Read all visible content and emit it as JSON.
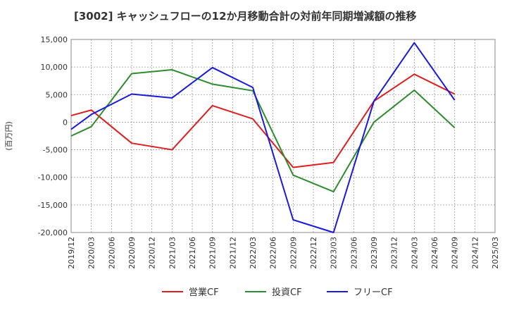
{
  "chart_data": {
    "type": "line",
    "title": "[3002]  キャッシュフローの12か月移動合計の対前年同期増減額の推移",
    "ylabel": "(百万円)",
    "xlabel": "",
    "ylim": [
      -20000,
      15000
    ],
    "yticks": [
      15000,
      10000,
      5000,
      0,
      -5000,
      -10000,
      -15000,
      -20000
    ],
    "ytick_labels": [
      "15,000",
      "10,000",
      "5,000",
      "0",
      "-5,000",
      "-10,000",
      "-15,000",
      "-20,000"
    ],
    "categories": [
      "2019/12",
      "2020/03",
      "2020/06",
      "2020/09",
      "2020/12",
      "2021/03",
      "2021/06",
      "2021/09",
      "2021/12",
      "2022/03",
      "2022/06",
      "2022/09",
      "2022/12",
      "2023/03",
      "2023/06",
      "2023/09",
      "2023/12",
      "2024/03",
      "2024/06",
      "2024/09",
      "2024/12",
      "2025/03"
    ],
    "grid": true,
    "legend_position": "bottom",
    "series": [
      {
        "name": "営業CF",
        "color": "#dd1f1f",
        "points": [
          [
            "2019/12",
            1200
          ],
          [
            "2020/03",
            2200
          ],
          [
            "2020/09",
            -3800
          ],
          [
            "2021/03",
            -5000
          ],
          [
            "2021/09",
            3000
          ],
          [
            "2022/03",
            600
          ],
          [
            "2022/09",
            -8200
          ],
          [
            "2023/03",
            -7300
          ],
          [
            "2023/09",
            3800
          ],
          [
            "2024/03",
            8700
          ],
          [
            "2024/09",
            5100
          ]
        ]
      },
      {
        "name": "投資CF",
        "color": "#2e8b2e",
        "points": [
          [
            "2019/12",
            -2500
          ],
          [
            "2020/03",
            -800
          ],
          [
            "2020/09",
            8800
          ],
          [
            "2021/03",
            9500
          ],
          [
            "2021/09",
            6900
          ],
          [
            "2022/03",
            5700
          ],
          [
            "2022/09",
            -9600
          ],
          [
            "2023/03",
            -12600
          ],
          [
            "2023/09",
            0
          ],
          [
            "2024/03",
            5800
          ],
          [
            "2024/09",
            -1000
          ]
        ]
      },
      {
        "name": "フリーCF",
        "color": "#1a1adc",
        "points": [
          [
            "2019/12",
            -1300
          ],
          [
            "2020/03",
            1400
          ],
          [
            "2020/09",
            5100
          ],
          [
            "2021/03",
            4400
          ],
          [
            "2021/09",
            9900
          ],
          [
            "2022/03",
            6300
          ],
          [
            "2022/09",
            -17700
          ],
          [
            "2023/03",
            -20000
          ],
          [
            "2023/09",
            3800
          ],
          [
            "2024/03",
            14400
          ],
          [
            "2024/09",
            4000
          ]
        ]
      }
    ]
  }
}
